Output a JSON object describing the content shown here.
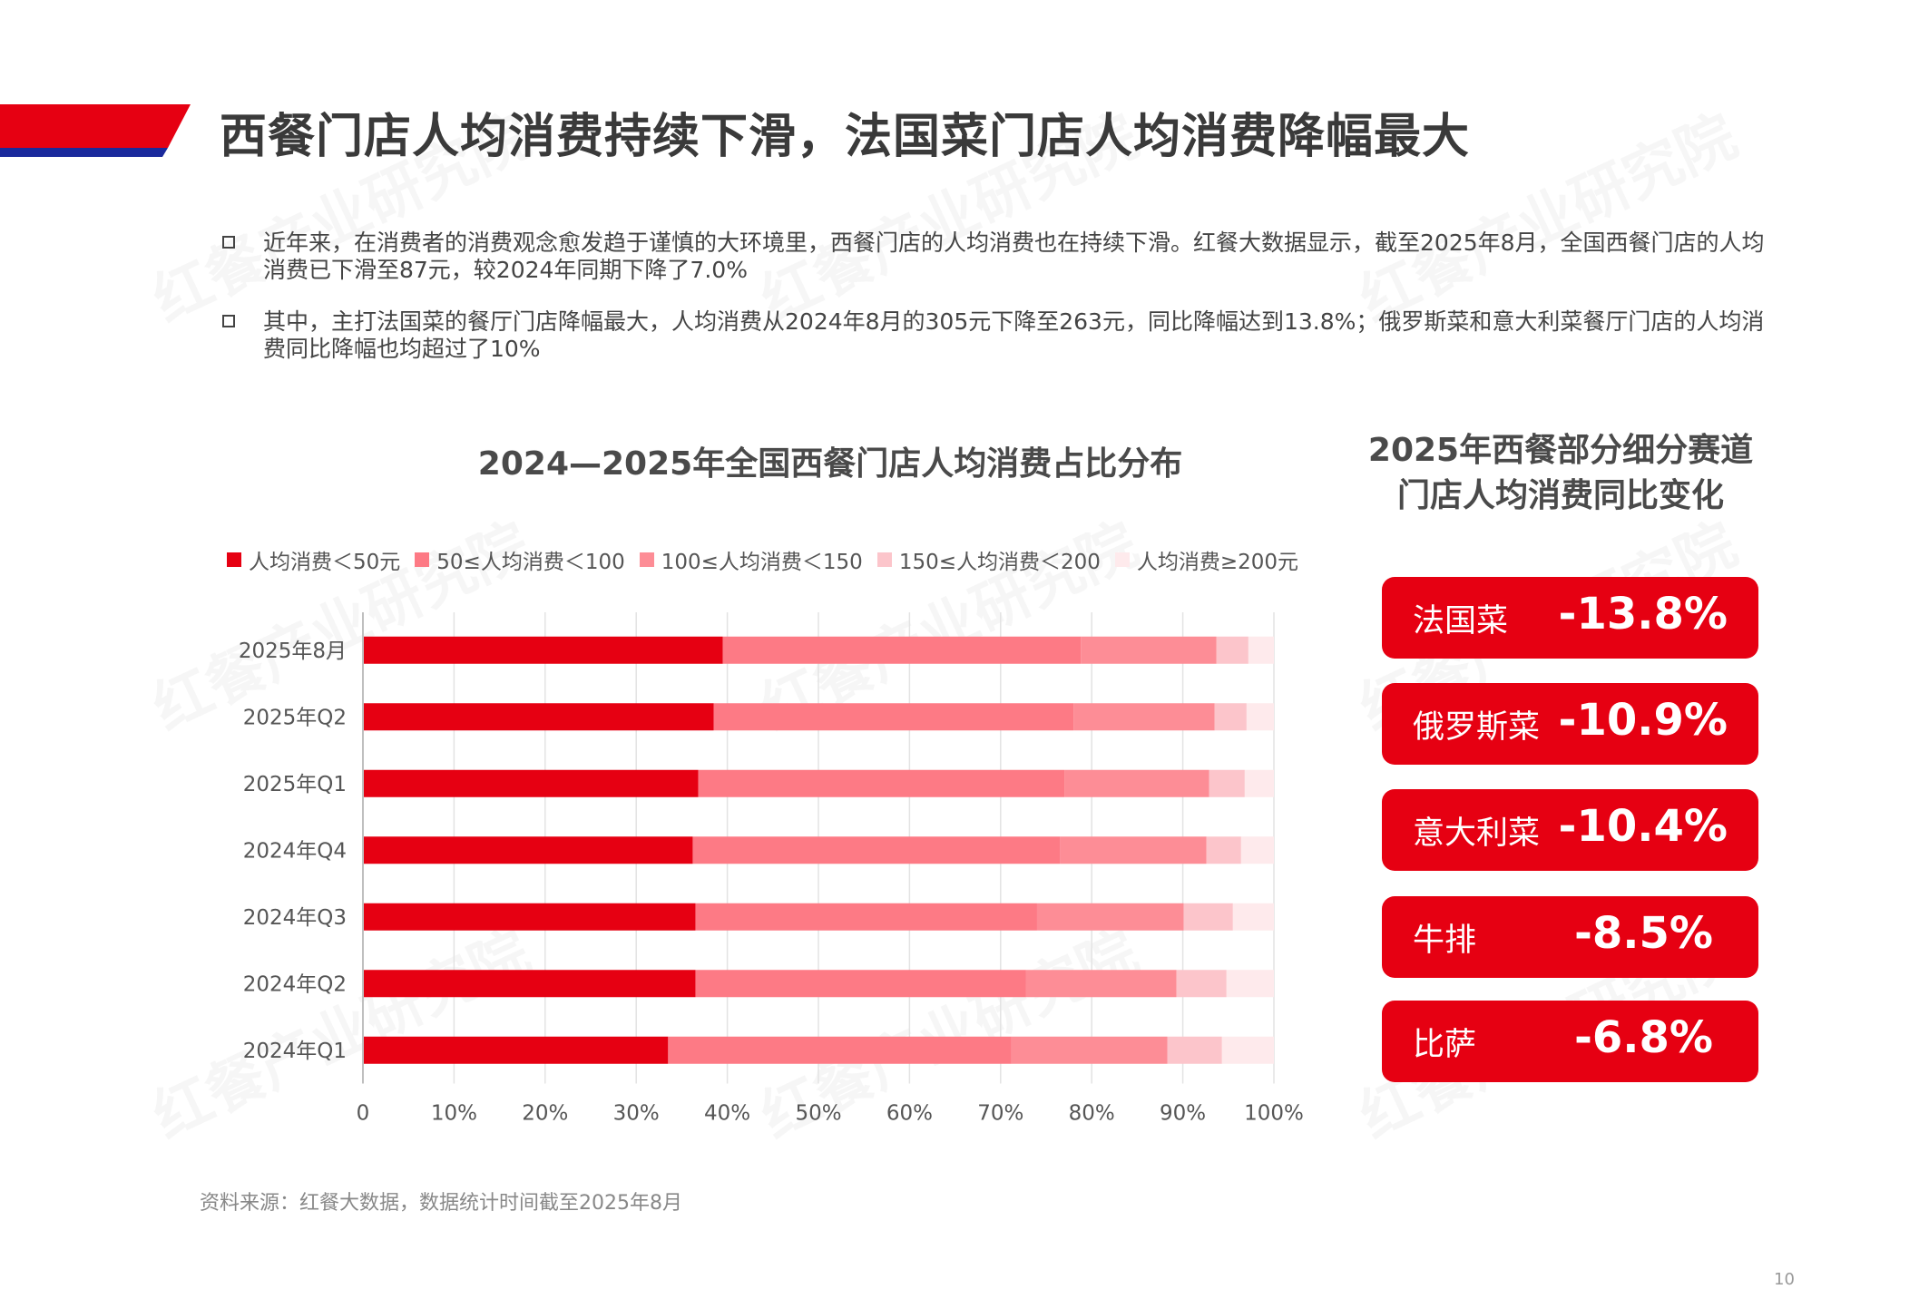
{
  "page": {
    "title": "西餐门店人均消费持续下滑，法国菜门店人均消费降幅最大",
    "bullets": [
      "近年来，在消费者的消费观念愈发趋于谨慎的大环境里，西餐门店的人均消费也在持续下滑。红餐大数据显示，截至2025年8月，全国西餐门店的人均消费已下滑至87元，较2024年同期下降了7.0%",
      "其中，主打法国菜的餐厅门店降幅最大，人均消费从2024年8月的305元下降至263元，同比降幅达到13.8%；俄罗斯菜和意大利菜餐厅门店的人均消费同比降幅也均超过了10%"
    ],
    "source": "资料来源：红餐大数据，数据统计时间截至2025年8月",
    "page_number": "10",
    "watermark": "红餐产业研究院",
    "colors": {
      "accent": "#e60012",
      "band_blue": "#1a2a9c"
    }
  },
  "chart_data": {
    "type": "bar",
    "orientation": "horizontal",
    "stacked": true,
    "title": "2024—2025年全国西餐门店人均消费占比分布",
    "categories": [
      "2025年8月",
      "2025年Q2",
      "2025年Q1",
      "2024年Q4",
      "2024年Q3",
      "2024年Q2",
      "2024年Q1"
    ],
    "series": [
      {
        "name": "人均消费＜50元",
        "color": "#e60012",
        "values": [
          39.5,
          38.5,
          36.8,
          36.2,
          36.5,
          36.5,
          33.5
        ]
      },
      {
        "name": "50≤人均消费＜100",
        "color": "#fd7a85",
        "values": [
          39.3,
          39.5,
          40.2,
          40.3,
          37.5,
          36.3,
          37.7
        ]
      },
      {
        "name": "100≤人均消费＜150",
        "color": "#fd8d96",
        "values": [
          14.9,
          15.5,
          15.9,
          16.1,
          16.1,
          16.5,
          17.1
        ]
      },
      {
        "name": "150≤人均消费＜200",
        "color": "#fcc5cb",
        "values": [
          3.5,
          3.5,
          3.9,
          3.8,
          5.4,
          5.5,
          6.0
        ]
      },
      {
        "name": "人均消费≥200元",
        "color": "#feeaec",
        "values": [
          2.8,
          3.0,
          3.2,
          3.6,
          4.5,
          5.2,
          5.7
        ]
      }
    ],
    "xlim": [
      0,
      100
    ],
    "xticks": [
      "0",
      "10%",
      "20%",
      "30%",
      "40%",
      "50%",
      "60%",
      "70%",
      "80%",
      "90%",
      "100%"
    ],
    "grid": true,
    "legend": "top"
  },
  "right_panel": {
    "title_lines": [
      "2025年西餐部分细分赛道",
      "门店人均消费同比变化"
    ],
    "items": [
      {
        "name": "法国菜",
        "value": "-13.8%"
      },
      {
        "name": "俄罗斯菜",
        "value": "-10.9%"
      },
      {
        "name": "意大利菜",
        "value": "-10.4%"
      },
      {
        "name": "牛排",
        "value": "-8.5%"
      },
      {
        "name": "比萨",
        "value": "-6.8%"
      }
    ]
  }
}
